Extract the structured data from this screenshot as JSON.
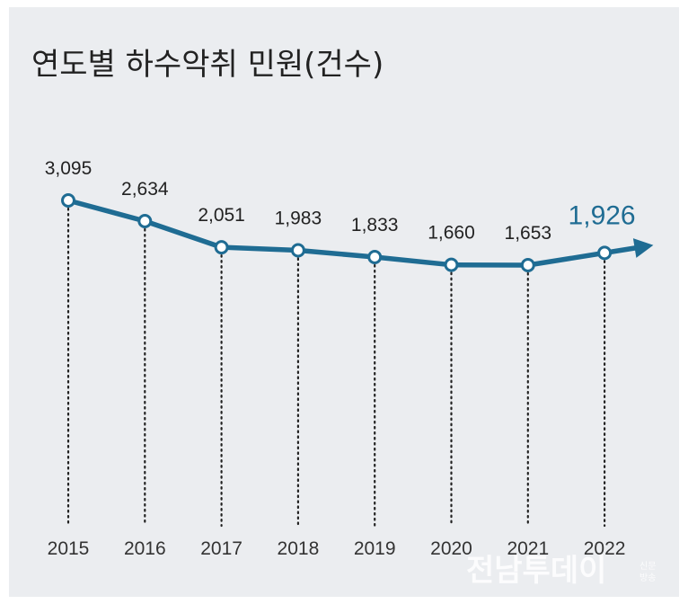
{
  "chart_data": {
    "type": "line",
    "title": "연도별 하수악취 민원(건수)",
    "categories": [
      "2015",
      "2016",
      "2017",
      "2018",
      "2019",
      "2020",
      "2021",
      "2022"
    ],
    "values": [
      3095,
      2634,
      2051,
      1983,
      1833,
      1660,
      1653,
      1926
    ],
    "value_labels": [
      "3,095",
      "2,634",
      "2,051",
      "1,983",
      "1,833",
      "1,660",
      "1,653",
      "1,926"
    ],
    "xlabel": "",
    "ylabel": "",
    "grid": false,
    "legend": "none",
    "colors": {
      "line": "#1f6c93",
      "highlight_label": "#1f6c93",
      "background": "#ebedf0"
    }
  },
  "watermark": {
    "main": "전남투데이",
    "sub_top": "신문",
    "sub_bottom": "방송"
  }
}
